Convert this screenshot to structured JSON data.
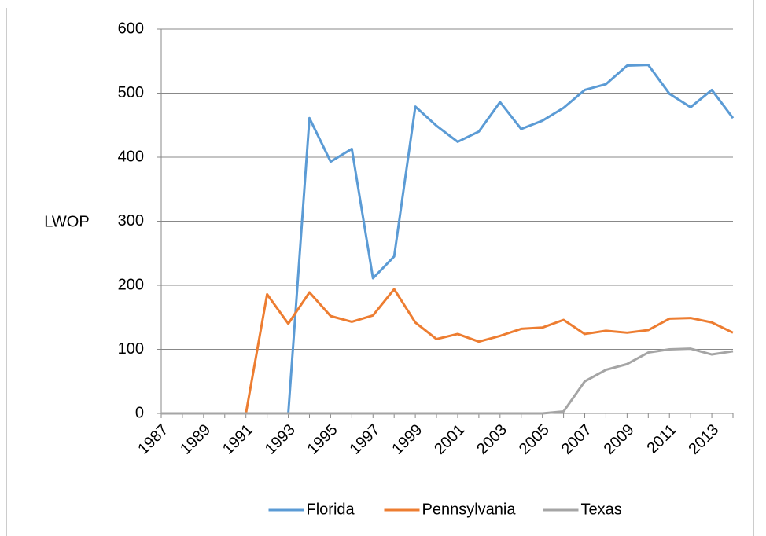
{
  "chart_data": {
    "type": "line",
    "y_label": "LWOP",
    "categories": [
      "1987",
      null,
      "1989",
      null,
      "1991",
      null,
      "1993",
      null,
      "1995",
      null,
      "1997",
      null,
      "1999",
      null,
      "2001",
      null,
      "2003",
      null,
      "2005",
      null,
      "2007",
      null,
      "2009",
      null,
      "2011",
      null,
      "2013",
      null
    ],
    "series": [
      {
        "name": "Florida",
        "color": "#5b9bd5",
        "values": [
          0,
          0,
          0,
          0,
          0,
          0,
          0,
          461,
          393,
          413,
          211,
          245,
          479,
          449,
          424,
          440,
          486,
          444,
          457,
          477,
          505,
          514,
          543,
          544,
          499,
          478,
          505,
          461
        ]
      },
      {
        "name": "Pennsylvania",
        "color": "#ed7d31",
        "values": [
          0,
          0,
          0,
          0,
          0,
          186,
          140,
          189,
          152,
          143,
          153,
          194,
          142,
          116,
          124,
          112,
          121,
          132,
          134,
          146,
          124,
          129,
          126,
          130,
          148,
          149,
          142,
          126
        ]
      },
      {
        "name": "Texas",
        "color": "#a5a5a5",
        "values": [
          0,
          0,
          0,
          0,
          0,
          0,
          0,
          0,
          0,
          0,
          0,
          0,
          0,
          0,
          0,
          0,
          0,
          0,
          0,
          3,
          50,
          68,
          77,
          95,
          100,
          101,
          92,
          97
        ]
      }
    ],
    "ylim": [
      0,
      600
    ],
    "yticks": [
      0,
      100,
      200,
      300,
      400,
      500,
      600
    ],
    "grid": true,
    "legend": "bottom"
  }
}
